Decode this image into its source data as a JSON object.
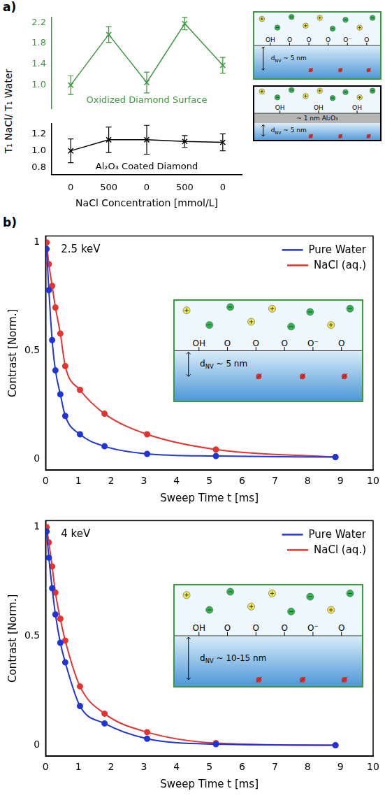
{
  "chart_data": [
    {
      "type": "line",
      "panel": "a)",
      "ylabel": "T₁ NaCl/ T₁ Water",
      "xlabel": "NaCl Concentration [mmol/L]",
      "categories": [
        "0",
        "500",
        "0",
        "500",
        "0"
      ],
      "series": [
        {
          "name": "Oxidized Diamond Surface",
          "color": "#3c9a3c",
          "marker": "cross",
          "axis": "y",
          "values": [
            1.0,
            1.97,
            1.05,
            2.18,
            1.38
          ],
          "errors": [
            0.18,
            0.15,
            0.2,
            0.12,
            0.15
          ]
        },
        {
          "name": "Al₂O₃ Coated Diamond",
          "color": "#000000",
          "marker": "cross",
          "axis": "y2",
          "values": [
            1.0,
            1.13,
            1.13,
            1.11,
            1.1
          ],
          "errors": [
            0.14,
            0.15,
            0.17,
            0.07,
            0.1
          ]
        }
      ],
      "ylim": [
        0.55,
        2.3
      ],
      "yticks": [
        {
          "value": 1,
          "label": "1.0"
        },
        1.4,
        1.8,
        2.2
      ],
      "y2lim": [
        0.72,
        1.32
      ],
      "y2ticks": [
        0.8,
        {
          "value": 1,
          "label": "1.0"
        },
        1.2
      ],
      "grid": false,
      "insets": [
        {
          "color": "#3c9a3c",
          "groups": [
            "OH",
            "O",
            "O",
            "O",
            "O⁻",
            "O"
          ],
          "depth": {
            "base": "d",
            "sub": "NV",
            "rest": " ~ 5 nm"
          }
        },
        {
          "color": "#000000",
          "groups": [
            "OH",
            "OH",
            "OH"
          ],
          "layer": "~ 1 nm Al₂O₃",
          "depth": {
            "base": "d",
            "sub": "NV",
            "rest": " ~ 5 nm"
          }
        }
      ]
    },
    {
      "type": "line",
      "panel": "b)",
      "title": "2.5 keV",
      "xlabel": "Sweep Time t [ms]",
      "ylabel": "Contrast [Norm.]",
      "x": [
        0.03,
        0.1,
        0.2,
        0.3,
        0.45,
        0.6,
        1.05,
        1.8,
        3.1,
        5.2,
        8.85
      ],
      "series": [
        {
          "name": "Pure Water",
          "color": "#1f35d6",
          "values": [
            0.97,
            0.78,
            0.55,
            0.41,
            0.3,
            0.2,
            0.115,
            0.06,
            0.025,
            0.015,
            0.01
          ]
        },
        {
          "name": "NaCl (aq.)",
          "color": "#e3342f",
          "values": [
            1.0,
            0.9,
            0.8,
            0.7,
            0.58,
            0.43,
            0.32,
            0.21,
            0.115,
            0.045,
            0.01
          ]
        }
      ],
      "xlim": [
        0,
        10
      ],
      "xticks": [
        0,
        1,
        2,
        3,
        4,
        5,
        6,
        7,
        8,
        9,
        10
      ],
      "ylim": [
        -0.05,
        1.03
      ],
      "yticks": [
        0,
        0.5,
        1
      ],
      "grid": false,
      "legend": "upper right",
      "marker": "circle",
      "line_style": "solid",
      "insets": [
        {
          "color": "#3c9a3c",
          "groups": [
            "OH",
            "O",
            "O",
            "O",
            "O⁻",
            "O"
          ],
          "depth": {
            "base": "d",
            "sub": "NV",
            "rest": " ~ 5 nm"
          }
        }
      ]
    },
    {
      "type": "line",
      "title": "4 keV",
      "xlabel": "Sweep Time t [ms]",
      "ylabel": "Contrast [Norm.]",
      "x": [
        0.03,
        0.1,
        0.2,
        0.3,
        0.45,
        0.6,
        1.05,
        1.8,
        3.1,
        5.2,
        8.85
      ],
      "series": [
        {
          "name": "Pure Water",
          "color": "#1f35d6",
          "values": [
            0.98,
            0.86,
            0.72,
            0.6,
            0.47,
            0.38,
            0.18,
            0.1,
            0.03,
            0.005,
            0.0
          ]
        },
        {
          "name": "NaCl (aq.)",
          "color": "#e3342f",
          "values": [
            1.0,
            0.93,
            0.82,
            0.7,
            0.58,
            0.48,
            0.27,
            0.145,
            0.06,
            0.01,
            0.0
          ]
        }
      ],
      "xlim": [
        0,
        10
      ],
      "xticks": [
        0,
        1,
        2,
        3,
        4,
        5,
        6,
        7,
        8,
        9,
        10
      ],
      "ylim": [
        -0.05,
        1.03
      ],
      "yticks": [
        0,
        0.5,
        1
      ],
      "grid": false,
      "legend": "upper right",
      "marker": "circle",
      "line_style": "solid",
      "insets": [
        {
          "color": "#3c9a3c",
          "groups": [
            "OH",
            "O",
            "O",
            "O",
            "O⁻",
            "O"
          ],
          "depth": {
            "base": "d",
            "sub": "NV",
            "rest": " ~ 10-15 nm"
          }
        }
      ]
    }
  ]
}
